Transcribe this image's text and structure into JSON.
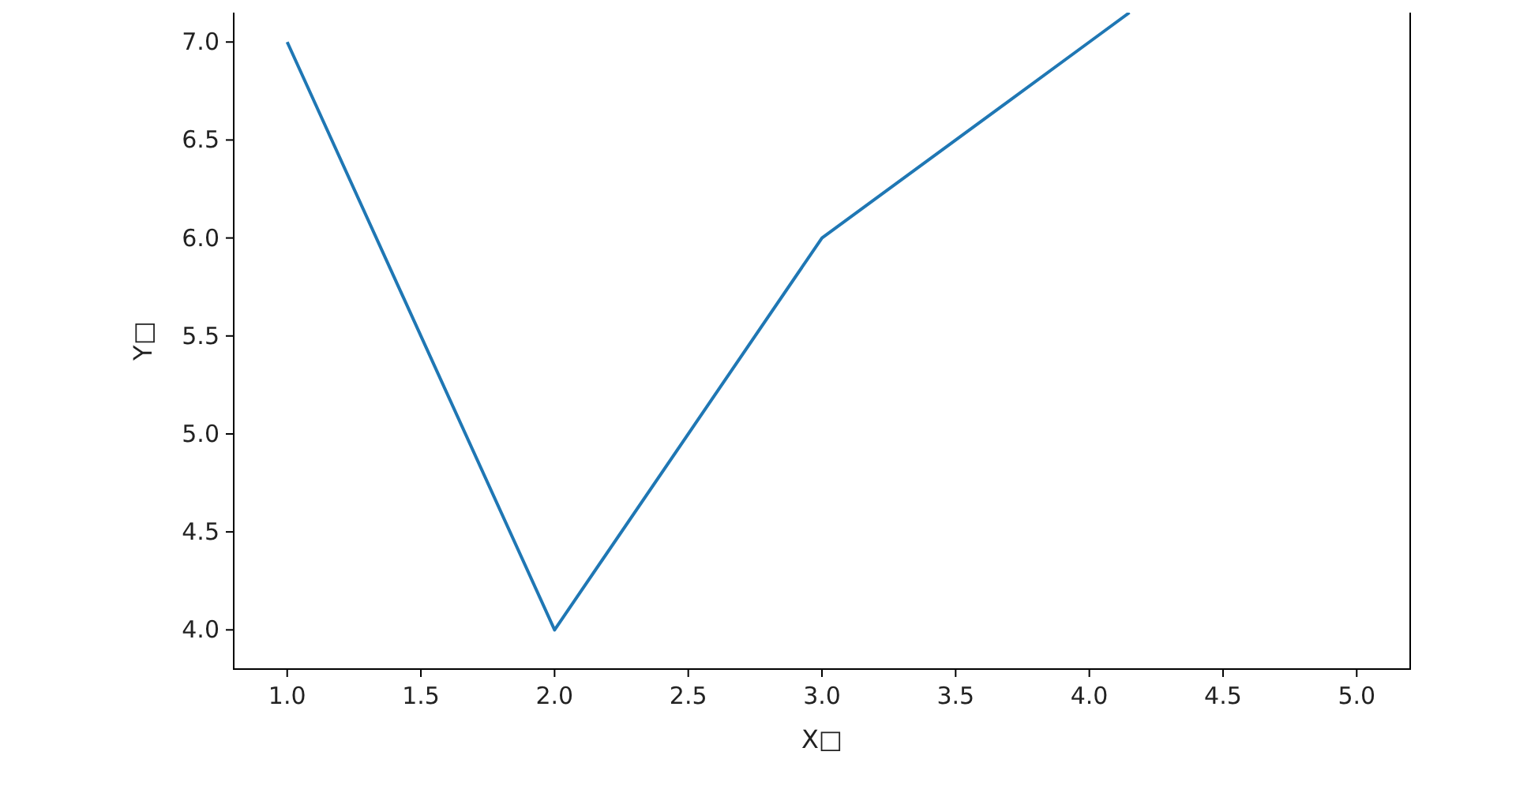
{
  "chart_data": {
    "type": "line",
    "xlabel": "X□",
    "ylabel": "Y□",
    "x": [
      1,
      2,
      3,
      4,
      4.15
    ],
    "series": [
      {
        "color": "#1f77b4",
        "values": [
          7,
          4,
          6,
          7,
          7.15
        ]
      }
    ],
    "xlim": [
      0.8,
      5.2
    ],
    "xticks": [
      {
        "value": 1,
        "label": "1.0"
      },
      {
        "value": 1.5,
        "label": "1.5"
      },
      {
        "value": 2,
        "label": "2.0"
      },
      {
        "value": 2.5,
        "label": "2.5"
      },
      {
        "value": 3,
        "label": "3.0"
      },
      {
        "value": 3.5,
        "label": "3.5"
      },
      {
        "value": 4,
        "label": "4.0"
      },
      {
        "value": 4.5,
        "label": "4.5"
      },
      {
        "value": 5,
        "label": "5.0"
      }
    ],
    "ylim": [
      3.8,
      7.15
    ],
    "yticks": [
      {
        "value": 4,
        "label": "4.0"
      },
      {
        "value": 4.5,
        "label": "4.5"
      },
      {
        "value": 5,
        "label": "5.0"
      },
      {
        "value": 5.5,
        "label": "5.5"
      },
      {
        "value": 6,
        "label": "6.0"
      },
      {
        "value": 6.5,
        "label": "6.5"
      },
      {
        "value": 7,
        "label": "7.0"
      }
    ],
    "grid": false
  }
}
